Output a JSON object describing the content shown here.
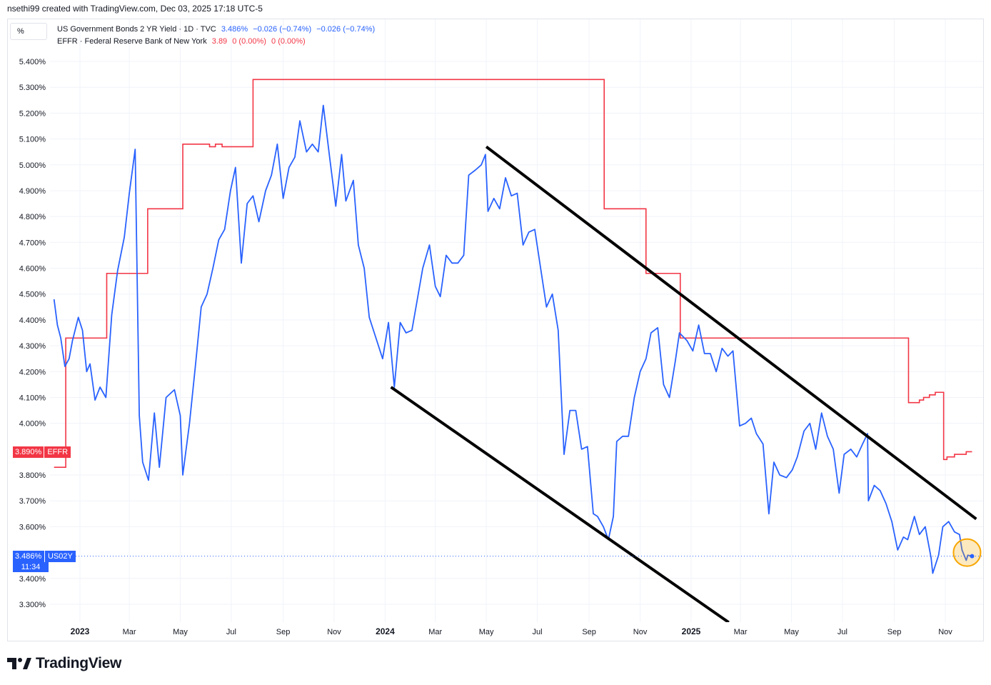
{
  "header": {
    "creator_line": "nsethi99 created with TradingView.com, Dec 03, 2025 17:18 UTC-5",
    "scale_mode": "%"
  },
  "legend": {
    "series1": {
      "name": "US Government Bonds 2 YR Yield · 1D · TVC",
      "value": "3.486%",
      "change": "−0.026 (−0.74%)",
      "change2": "−0.026 (−0.74%)"
    },
    "series2": {
      "name": "EFFR · Federal Reserve Bank of New York",
      "value": "3.89",
      "change": "0 (0.00%)",
      "change2": "0 (0.00%)"
    }
  },
  "price_badges": {
    "effr": {
      "value": "3.890%",
      "ticker": "EFFR"
    },
    "us02y": {
      "value": "3.486%",
      "ticker": "US02Y",
      "countdown": "11:34"
    }
  },
  "brand": {
    "name": "TradingView"
  },
  "colors": {
    "yield": "#2962ff",
    "effr": "#f23645",
    "trendline": "#000000",
    "highlight": "#f7a600"
  },
  "chart_data": {
    "type": "line",
    "x_range": [
      "2022-12-01",
      "2025-12-03"
    ],
    "y_range": [
      3.22,
      5.43
    ],
    "y_axis_side": "left",
    "y_ticks": [
      "5.400%",
      "5.300%",
      "5.200%",
      "5.100%",
      "5.000%",
      "4.900%",
      "4.800%",
      "4.700%",
      "4.600%",
      "4.500%",
      "4.400%",
      "4.300%",
      "4.200%",
      "4.100%",
      "4.000%",
      "3.800%",
      "3.700%",
      "3.600%",
      "3.400%",
      "3.300%"
    ],
    "x_ticks": [
      {
        "label": "2023",
        "date": "2023-01-01",
        "bold": true
      },
      {
        "label": "Mar",
        "date": "2023-03-01"
      },
      {
        "label": "May",
        "date": "2023-05-01"
      },
      {
        "label": "Jul",
        "date": "2023-07-01"
      },
      {
        "label": "Sep",
        "date": "2023-09-01"
      },
      {
        "label": "Nov",
        "date": "2023-11-01"
      },
      {
        "label": "2024",
        "date": "2024-01-01",
        "bold": true
      },
      {
        "label": "Mar",
        "date": "2024-03-01"
      },
      {
        "label": "May",
        "date": "2024-05-01"
      },
      {
        "label": "Jul",
        "date": "2024-07-01"
      },
      {
        "label": "Sep",
        "date": "2024-09-01"
      },
      {
        "label": "Nov",
        "date": "2024-11-01"
      },
      {
        "label": "2025",
        "date": "2025-01-01",
        "bold": true
      },
      {
        "label": "Mar",
        "date": "2025-03-01"
      },
      {
        "label": "May",
        "date": "2025-05-01"
      },
      {
        "label": "Jul",
        "date": "2025-07-01"
      },
      {
        "label": "Sep",
        "date": "2025-09-01"
      },
      {
        "label": "Nov",
        "date": "2025-11-01"
      }
    ],
    "grid": true,
    "series": [
      {
        "name": "US02Y",
        "style": "line",
        "points": [
          [
            "2022-12-01",
            4.48
          ],
          [
            "2022-12-05",
            4.38
          ],
          [
            "2022-12-09",
            4.33
          ],
          [
            "2022-12-14",
            4.22
          ],
          [
            "2022-12-19",
            4.25
          ],
          [
            "2022-12-23",
            4.32
          ],
          [
            "2022-12-30",
            4.41
          ],
          [
            "2023-01-04",
            4.36
          ],
          [
            "2023-01-09",
            4.2
          ],
          [
            "2023-01-13",
            4.23
          ],
          [
            "2023-01-19",
            4.09
          ],
          [
            "2023-01-25",
            4.14
          ],
          [
            "2023-02-01",
            4.1
          ],
          [
            "2023-02-08",
            4.42
          ],
          [
            "2023-02-15",
            4.59
          ],
          [
            "2023-02-23",
            4.72
          ],
          [
            "2023-03-01",
            4.89
          ],
          [
            "2023-03-08",
            5.06
          ],
          [
            "2023-03-13",
            4.03
          ],
          [
            "2023-03-17",
            3.85
          ],
          [
            "2023-03-24",
            3.78
          ],
          [
            "2023-03-31",
            4.04
          ],
          [
            "2023-04-06",
            3.83
          ],
          [
            "2023-04-14",
            4.1
          ],
          [
            "2023-04-24",
            4.13
          ],
          [
            "2023-05-01",
            4.03
          ],
          [
            "2023-05-04",
            3.8
          ],
          [
            "2023-05-12",
            4.0
          ],
          [
            "2023-05-19",
            4.22
          ],
          [
            "2023-05-26",
            4.45
          ],
          [
            "2023-06-02",
            4.5
          ],
          [
            "2023-06-09",
            4.6
          ],
          [
            "2023-06-16",
            4.71
          ],
          [
            "2023-06-23",
            4.75
          ],
          [
            "2023-06-30",
            4.9
          ],
          [
            "2023-07-06",
            4.99
          ],
          [
            "2023-07-13",
            4.62
          ],
          [
            "2023-07-20",
            4.85
          ],
          [
            "2023-07-27",
            4.88
          ],
          [
            "2023-08-03",
            4.78
          ],
          [
            "2023-08-11",
            4.9
          ],
          [
            "2023-08-18",
            4.96
          ],
          [
            "2023-08-25",
            5.08
          ],
          [
            "2023-09-01",
            4.87
          ],
          [
            "2023-09-08",
            4.99
          ],
          [
            "2023-09-15",
            5.03
          ],
          [
            "2023-09-21",
            5.17
          ],
          [
            "2023-09-29",
            5.05
          ],
          [
            "2023-10-06",
            5.08
          ],
          [
            "2023-10-13",
            5.05
          ],
          [
            "2023-10-19",
            5.23
          ],
          [
            "2023-10-27",
            5.02
          ],
          [
            "2023-11-03",
            4.84
          ],
          [
            "2023-11-10",
            5.04
          ],
          [
            "2023-11-15",
            4.86
          ],
          [
            "2023-11-24",
            4.94
          ],
          [
            "2023-11-30",
            4.69
          ],
          [
            "2023-12-07",
            4.6
          ],
          [
            "2023-12-13",
            4.41
          ],
          [
            "2023-12-20",
            4.34
          ],
          [
            "2023-12-29",
            4.25
          ],
          [
            "2024-01-05",
            4.39
          ],
          [
            "2024-01-12",
            4.14
          ],
          [
            "2024-01-19",
            4.39
          ],
          [
            "2024-01-26",
            4.35
          ],
          [
            "2024-02-02",
            4.36
          ],
          [
            "2024-02-08",
            4.47
          ],
          [
            "2024-02-15",
            4.6
          ],
          [
            "2024-02-23",
            4.69
          ],
          [
            "2024-03-01",
            4.53
          ],
          [
            "2024-03-07",
            4.49
          ],
          [
            "2024-03-14",
            4.65
          ],
          [
            "2024-03-21",
            4.62
          ],
          [
            "2024-03-28",
            4.62
          ],
          [
            "2024-04-04",
            4.65
          ],
          [
            "2024-04-10",
            4.96
          ],
          [
            "2024-04-18",
            4.98
          ],
          [
            "2024-04-25",
            5.0
          ],
          [
            "2024-04-30",
            5.04
          ],
          [
            "2024-05-03",
            4.82
          ],
          [
            "2024-05-10",
            4.87
          ],
          [
            "2024-05-17",
            4.83
          ],
          [
            "2024-05-24",
            4.95
          ],
          [
            "2024-05-31",
            4.88
          ],
          [
            "2024-06-07",
            4.89
          ],
          [
            "2024-06-14",
            4.69
          ],
          [
            "2024-06-21",
            4.74
          ],
          [
            "2024-06-28",
            4.75
          ],
          [
            "2024-07-05",
            4.6
          ],
          [
            "2024-07-12",
            4.45
          ],
          [
            "2024-07-19",
            4.5
          ],
          [
            "2024-07-26",
            4.36
          ],
          [
            "2024-08-02",
            3.88
          ],
          [
            "2024-08-09",
            4.05
          ],
          [
            "2024-08-16",
            4.05
          ],
          [
            "2024-08-23",
            3.9
          ],
          [
            "2024-08-30",
            3.91
          ],
          [
            "2024-09-06",
            3.65
          ],
          [
            "2024-09-11",
            3.64
          ],
          [
            "2024-09-18",
            3.6
          ],
          [
            "2024-09-24",
            3.55
          ],
          [
            "2024-09-30",
            3.64
          ],
          [
            "2024-10-04",
            3.93
          ],
          [
            "2024-10-11",
            3.95
          ],
          [
            "2024-10-18",
            3.95
          ],
          [
            "2024-10-25",
            4.1
          ],
          [
            "2024-11-01",
            4.2
          ],
          [
            "2024-11-08",
            4.25
          ],
          [
            "2024-11-14",
            4.35
          ],
          [
            "2024-11-22",
            4.37
          ],
          [
            "2024-11-29",
            4.15
          ],
          [
            "2024-12-06",
            4.1
          ],
          [
            "2024-12-13",
            4.24
          ],
          [
            "2024-12-18",
            4.35
          ],
          [
            "2024-12-27",
            4.32
          ],
          [
            "2025-01-03",
            4.28
          ],
          [
            "2025-01-10",
            4.38
          ],
          [
            "2025-01-17",
            4.27
          ],
          [
            "2025-01-24",
            4.27
          ],
          [
            "2025-01-31",
            4.2
          ],
          [
            "2025-02-07",
            4.29
          ],
          [
            "2025-02-14",
            4.26
          ],
          [
            "2025-02-20",
            4.28
          ],
          [
            "2025-02-28",
            3.99
          ],
          [
            "2025-03-07",
            4.0
          ],
          [
            "2025-03-14",
            4.02
          ],
          [
            "2025-03-20",
            3.96
          ],
          [
            "2025-03-28",
            3.92
          ],
          [
            "2025-04-04",
            3.65
          ],
          [
            "2025-04-10",
            3.85
          ],
          [
            "2025-04-17",
            3.8
          ],
          [
            "2025-04-25",
            3.79
          ],
          [
            "2025-05-02",
            3.82
          ],
          [
            "2025-05-08",
            3.87
          ],
          [
            "2025-05-16",
            3.97
          ],
          [
            "2025-05-23",
            4.0
          ],
          [
            "2025-05-30",
            3.9
          ],
          [
            "2025-06-06",
            4.04
          ],
          [
            "2025-06-13",
            3.95
          ],
          [
            "2025-06-20",
            3.9
          ],
          [
            "2025-06-27",
            3.73
          ],
          [
            "2025-07-03",
            3.88
          ],
          [
            "2025-07-11",
            3.9
          ],
          [
            "2025-07-18",
            3.87
          ],
          [
            "2025-07-25",
            3.92
          ],
          [
            "2025-07-31",
            3.96
          ],
          [
            "2025-08-01",
            3.7
          ],
          [
            "2025-08-08",
            3.76
          ],
          [
            "2025-08-15",
            3.74
          ],
          [
            "2025-08-22",
            3.69
          ],
          [
            "2025-08-29",
            3.62
          ],
          [
            "2025-09-05",
            3.51
          ],
          [
            "2025-09-12",
            3.56
          ],
          [
            "2025-09-17",
            3.55
          ],
          [
            "2025-09-25",
            3.64
          ],
          [
            "2025-10-01",
            3.57
          ],
          [
            "2025-10-08",
            3.6
          ],
          [
            "2025-10-15",
            3.48
          ],
          [
            "2025-10-17",
            3.42
          ],
          [
            "2025-10-24",
            3.49
          ],
          [
            "2025-10-29",
            3.6
          ],
          [
            "2025-11-05",
            3.62
          ],
          [
            "2025-11-12",
            3.58
          ],
          [
            "2025-11-18",
            3.57
          ],
          [
            "2025-11-21",
            3.51
          ],
          [
            "2025-11-26",
            3.47
          ],
          [
            "2025-11-28",
            3.49
          ],
          [
            "2025-12-03",
            3.486
          ]
        ]
      },
      {
        "name": "EFFR",
        "style": "step",
        "points": [
          [
            "2022-12-01",
            3.83
          ],
          [
            "2022-12-15",
            4.33
          ],
          [
            "2023-02-02",
            4.58
          ],
          [
            "2023-03-23",
            4.83
          ],
          [
            "2023-05-04",
            5.08
          ],
          [
            "2023-06-01",
            5.08
          ],
          [
            "2023-06-05",
            5.07
          ],
          [
            "2023-06-12",
            5.08
          ],
          [
            "2023-06-20",
            5.07
          ],
          [
            "2023-07-27",
            5.33
          ],
          [
            "2024-09-19",
            4.83
          ],
          [
            "2024-11-08",
            4.58
          ],
          [
            "2024-12-19",
            4.33
          ],
          [
            "2025-09-18",
            4.08
          ],
          [
            "2025-10-01",
            4.09
          ],
          [
            "2025-10-06",
            4.1
          ],
          [
            "2025-10-13",
            4.11
          ],
          [
            "2025-10-20",
            4.12
          ],
          [
            "2025-10-30",
            3.86
          ],
          [
            "2025-11-03",
            3.87
          ],
          [
            "2025-11-12",
            3.88
          ],
          [
            "2025-11-26",
            3.89
          ],
          [
            "2025-12-03",
            3.89
          ]
        ]
      }
    ],
    "drawings": [
      {
        "type": "trendline",
        "from": [
          "2024-05-01",
          5.07
        ],
        "to": [
          "2025-12-08",
          3.63
        ]
      },
      {
        "type": "trendline",
        "from": [
          "2024-01-08",
          4.14
        ],
        "to": [
          "2025-02-15",
          3.23
        ]
      },
      {
        "type": "circle",
        "center": [
          "2025-11-27",
          3.5
        ],
        "note": "highlight"
      }
    ],
    "last_value_line": 3.486
  }
}
